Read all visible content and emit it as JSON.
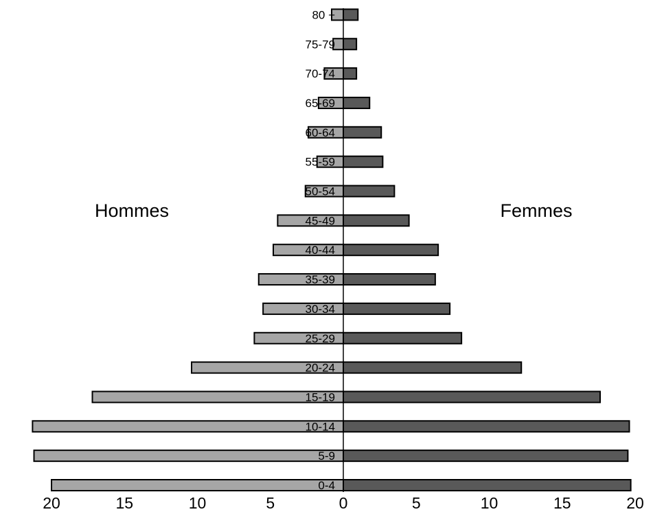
{
  "chart_data": {
    "type": "bar",
    "orientation": "horizontal",
    "layout": "population-pyramid",
    "categories": [
      "0-4",
      "5-9",
      "10-14",
      "15-19",
      "20-24",
      "25-29",
      "30-34",
      "35-39",
      "40-44",
      "45-49",
      "50-54",
      "55-59",
      "60-64",
      "65-69",
      "70-74",
      "75-79",
      "80 +"
    ],
    "series": [
      {
        "name": "Hommes",
        "values": [
          20.0,
          21.2,
          21.3,
          17.2,
          10.4,
          6.1,
          5.5,
          5.8,
          4.8,
          4.5,
          2.6,
          1.8,
          2.4,
          1.7,
          1.3,
          0.7,
          0.8
        ],
        "color": "#a6a6a6"
      },
      {
        "name": "Femmes",
        "values": [
          19.7,
          19.5,
          19.6,
          17.6,
          12.2,
          8.1,
          7.3,
          6.3,
          6.5,
          4.5,
          3.5,
          2.7,
          2.6,
          1.8,
          0.9,
          0.9,
          1.0
        ],
        "color": "#595959"
      }
    ],
    "xticks": [
      "20",
      "15",
      "10",
      "5",
      "0",
      "5",
      "10",
      "15",
      "20"
    ],
    "xlim": [
      -20,
      20
    ],
    "title": "",
    "xlabel": "",
    "ylabel": "",
    "grid": false,
    "legend": "none"
  }
}
